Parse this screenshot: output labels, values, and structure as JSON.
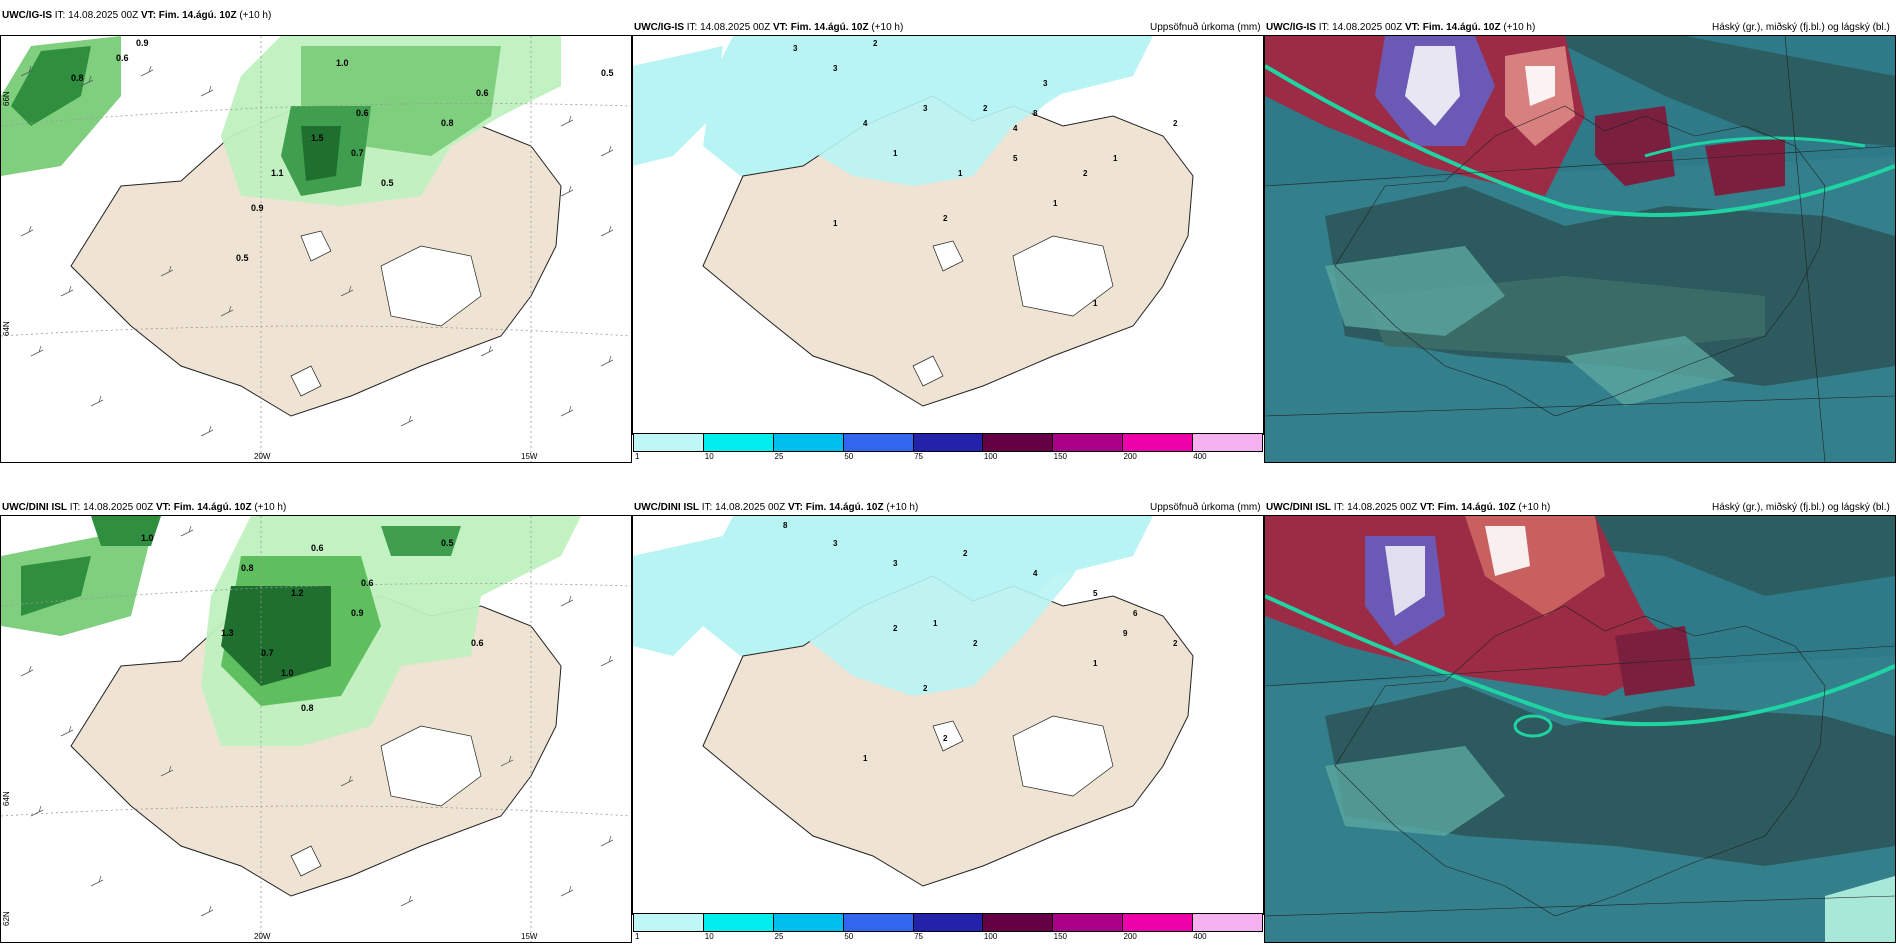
{
  "panels": {
    "r1c1": {
      "model": "UWC/IG-IS",
      "it_label": "IT:",
      "it_value": "14.08.2025 00Z",
      "vt_label": "VT:",
      "vt_value": "Fim. 14.ágú. 10Z",
      "lead": "(+10 h)"
    },
    "r1c2": {
      "model": "UWC/IG-IS",
      "it_label": "IT:",
      "it_value": "14.08.2025 00Z",
      "vt_label": "VT:",
      "vt_value": "Fim. 14.ágú. 10Z",
      "lead": "(+10 h)",
      "right_title": "Uppsöfnuð úrkoma (mm)"
    },
    "r1c3": {
      "model": "UWC/IG-IS",
      "it_label": "IT:",
      "it_value": "14.08.2025 00Z",
      "vt_label": "VT:",
      "vt_value": "Fim. 14.ágú. 10Z",
      "lead": "(+10 h)",
      "right_title": "Háský (gr.), miðský (fj.bl.) og lágský (bl.)"
    },
    "r2c1": {
      "model": "UWC/DINI ISL",
      "it_label": "IT:",
      "it_value": "14.08.2025 00Z",
      "vt_label": "VT:",
      "vt_value": "Fim. 14.ágú. 10Z",
      "lead": "(+10 h)"
    },
    "r2c2": {
      "model": "UWC/DINI ISL",
      "it_label": "IT:",
      "it_value": "14.08.2025 00Z",
      "vt_label": "VT:",
      "vt_value": "Fim. 14.ágú. 10Z",
      "lead": "(+10 h)",
      "right_title": "Uppsöfnuð úrkoma (mm)"
    },
    "r2c3": {
      "model": "UWC/DINI ISL",
      "it_label": "IT:",
      "it_value": "14.08.2025 00Z",
      "vt_label": "VT:",
      "vt_value": "Fim. 14.ágú. 10Z",
      "lead": "(+10 h)",
      "right_title": "Háský (gr.), miðský (fj.bl.) og lágský (bl.)"
    }
  },
  "grid_labels": {
    "lon_20w": "20W",
    "lon_15w": "15W",
    "lat_66n": "66N",
    "lat_64n": "64N",
    "lat_62n": "62N"
  },
  "colorbar": {
    "ticks": [
      "1",
      "10",
      "25",
      "50",
      "75",
      "100",
      "150",
      "200",
      "400"
    ],
    "colors": [
      "#bff7f7",
      "#00eeee",
      "#00bfee",
      "#3366ee",
      "#2222aa",
      "#660044",
      "#aa0088",
      "#ee00aa",
      "#f5b0f0"
    ]
  },
  "colors": {
    "land": "#efe3d4",
    "precip_light": "#bff0bf",
    "precip_mid": "#5fbf5f",
    "precip_dark": "#1f7f2f",
    "accum_light": "#b8f4f4",
    "cloud_teal": "#2a7f80",
    "cloud_dark": "#254f55",
    "cloud_red": "#b5404a"
  },
  "precip_labels_top": [
    "0.9",
    "0.6",
    "0.8",
    "1.5",
    "0.6",
    "0.5",
    "0.7",
    "1.0",
    "0.8",
    "0.6",
    "0.5",
    "1.1",
    "0.9",
    "0.5"
  ],
  "precip_labels_bottom": [
    "1.0",
    "0.6",
    "0.8",
    "1.2",
    "0.9",
    "0.7",
    "1.3",
    "1.0",
    "0.8",
    "0.6",
    "0.5",
    "0.6"
  ],
  "accum_labels_top": [
    "3",
    "3",
    "2",
    "4",
    "1",
    "3",
    "2",
    "4",
    "5",
    "8",
    "3",
    "2",
    "1",
    "2",
    "1",
    "2",
    "1",
    "1",
    "1"
  ],
  "accum_labels_bottom": [
    "8",
    "3",
    "3",
    "2",
    "4",
    "5",
    "6",
    "9",
    "2",
    "1",
    "2",
    "2",
    "2",
    "1",
    "1",
    "2"
  ]
}
